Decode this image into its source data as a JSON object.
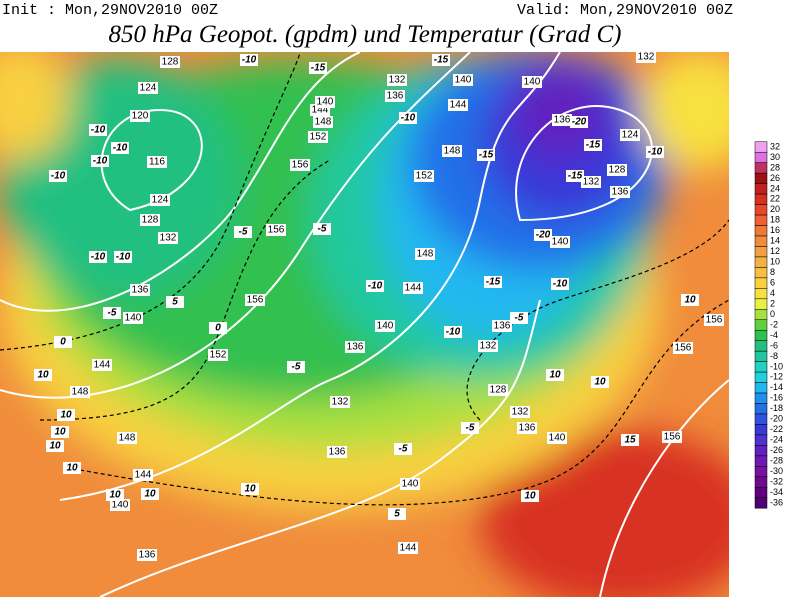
{
  "header": {
    "init": "Init : Mon,29NOV2010 00Z",
    "valid": "Valid: Mon,29NOV2010 00Z",
    "title": "850 hPa Geopot. (gpdm) und Temperatur (Grad C)"
  },
  "colorbar": {
    "ticks": [
      32,
      30,
      28,
      26,
      24,
      22,
      20,
      18,
      16,
      14,
      12,
      10,
      8,
      6,
      4,
      2,
      0,
      -2,
      -4,
      -6,
      -8,
      -10,
      -12,
      -14,
      -16,
      -18,
      -20,
      -22,
      -24,
      -26,
      -28,
      -30,
      -32,
      -34,
      -36
    ],
    "colors": [
      "#f0a0f0",
      "#e070e0",
      "#c03060",
      "#a01010",
      "#c02020",
      "#d83020",
      "#e84828",
      "#f06030",
      "#f07838",
      "#f08c3c",
      "#f4a040",
      "#f4b040",
      "#f8c040",
      "#f8d040",
      "#f8e040",
      "#e8f040",
      "#a8e040",
      "#60d040",
      "#30c050",
      "#20c080",
      "#20c8a0",
      "#20d0c0",
      "#20d0e0",
      "#20b8f0",
      "#2090f0",
      "#2070e8",
      "#3050e0",
      "#3838d8",
      "#5030d0",
      "#6020c0",
      "#7018b0",
      "#7810a0",
      "#700890",
      "#600080",
      "#500070"
    ]
  },
  "map": {
    "geopotential_labels": [
      "128",
      "124",
      "120",
      "116",
      "124",
      "128",
      "132",
      "136",
      "140",
      "144",
      "148",
      "148",
      "144",
      "140",
      "136",
      "152",
      "156",
      "156",
      "156",
      "152",
      "148",
      "144",
      "140",
      "132",
      "136",
      "140",
      "144",
      "148",
      "152",
      "148",
      "144",
      "140",
      "136",
      "132",
      "136",
      "136",
      "132",
      "128",
      "132",
      "136",
      "140",
      "140",
      "144",
      "140",
      "136",
      "132",
      "128",
      "124",
      "132",
      "140",
      "136",
      "156",
      "156",
      "156"
    ],
    "temperature_labels": [
      "-10",
      "-15",
      "-15",
      "-10",
      "-10",
      "-10",
      "-10",
      "-10",
      "-10",
      "-5",
      "0",
      "5",
      "0",
      "-5",
      "-10",
      "-10",
      "-5",
      "-10",
      "-20",
      "-15",
      "-15",
      "-15",
      "-10",
      "-20",
      "-15",
      "-10",
      "10",
      "10",
      "10",
      "10",
      "10",
      "10",
      "10",
      "10",
      "10",
      "5",
      "-5",
      "-5",
      "-5",
      "-5",
      "10",
      "15",
      "10",
      "10"
    ]
  }
}
